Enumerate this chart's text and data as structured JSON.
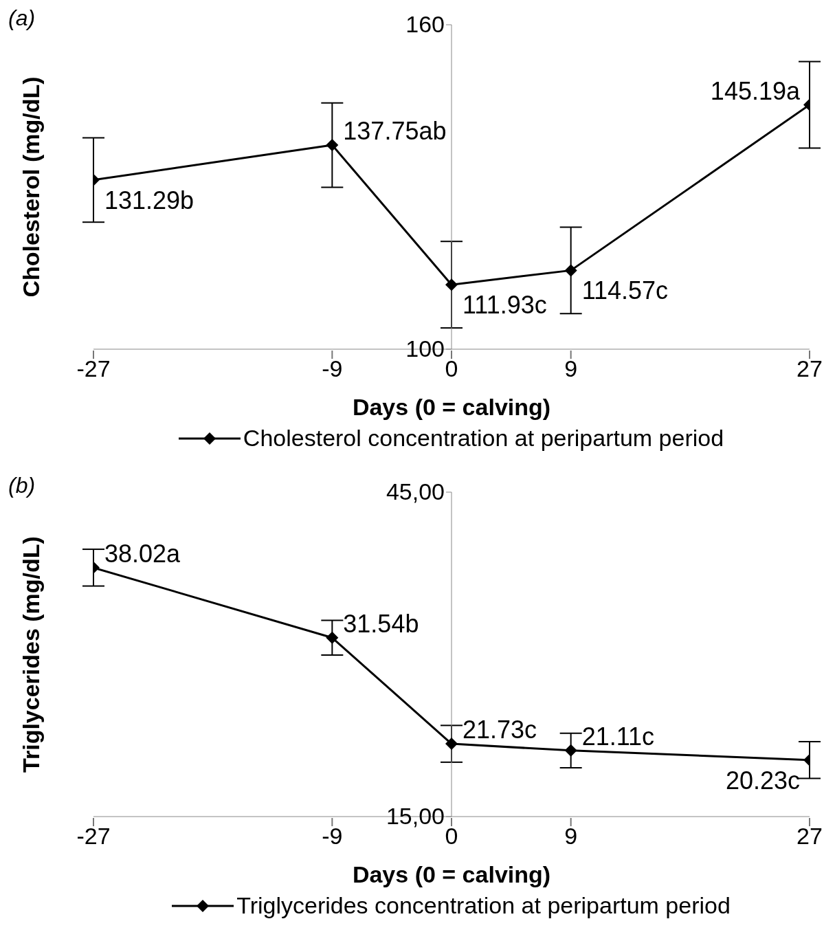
{
  "chart_data": [
    {
      "type": "line",
      "annotations": [
        "(a)"
      ],
      "xlabel": "Days (0 = calving)",
      "ylabel": "Cholesterol (mg/dL)",
      "x": [
        -27,
        -9,
        0,
        9,
        27
      ],
      "xlim": [
        -27,
        27
      ],
      "xticks": [
        -27,
        -9,
        0,
        9,
        27
      ],
      "ylim": [
        100,
        160
      ],
      "yticks": [
        100,
        160
      ],
      "grid": false,
      "legend": "bottom",
      "marker": "diamond",
      "line_style": "solid",
      "series": [
        {
          "name": "Cholesterol concentration at peripartum period",
          "color": "#000000",
          "values": [
            131.29,
            137.75,
            111.93,
            114.57,
            145.19
          ],
          "errors": [
            7.8,
            7.8,
            8,
            8,
            8
          ],
          "value_labels": [
            "131.29b",
            "137.75ab",
            "111.93c",
            "114.57c",
            "145.19a"
          ]
        }
      ]
    },
    {
      "type": "line",
      "annotations": [
        "(b)"
      ],
      "xlabel": "Days (0 = calving)",
      "ylabel": "Triglycerides (mg/dL)",
      "x": [
        -27,
        -9,
        0,
        9,
        27
      ],
      "xlim": [
        -27,
        27
      ],
      "xticks": [
        -27,
        -9,
        0,
        9,
        27
      ],
      "ylim": [
        15,
        45
      ],
      "yticks": [
        {
          "value": 15,
          "label": "15,00"
        },
        {
          "value": 45,
          "label": "45,00"
        }
      ],
      "grid": false,
      "legend": "bottom",
      "marker": "diamond",
      "line_style": "solid",
      "series": [
        {
          "name": "Triglycerides concentration at peripartum period",
          "color": "#000000",
          "values": [
            38.02,
            31.54,
            21.73,
            21.11,
            20.23
          ],
          "errors": [
            1.7,
            1.6,
            1.7,
            1.6,
            1.7
          ],
          "value_labels": [
            "38.02a",
            "31.54b",
            "21.73c",
            "21.11c",
            "20.23c"
          ]
        }
      ]
    }
  ]
}
